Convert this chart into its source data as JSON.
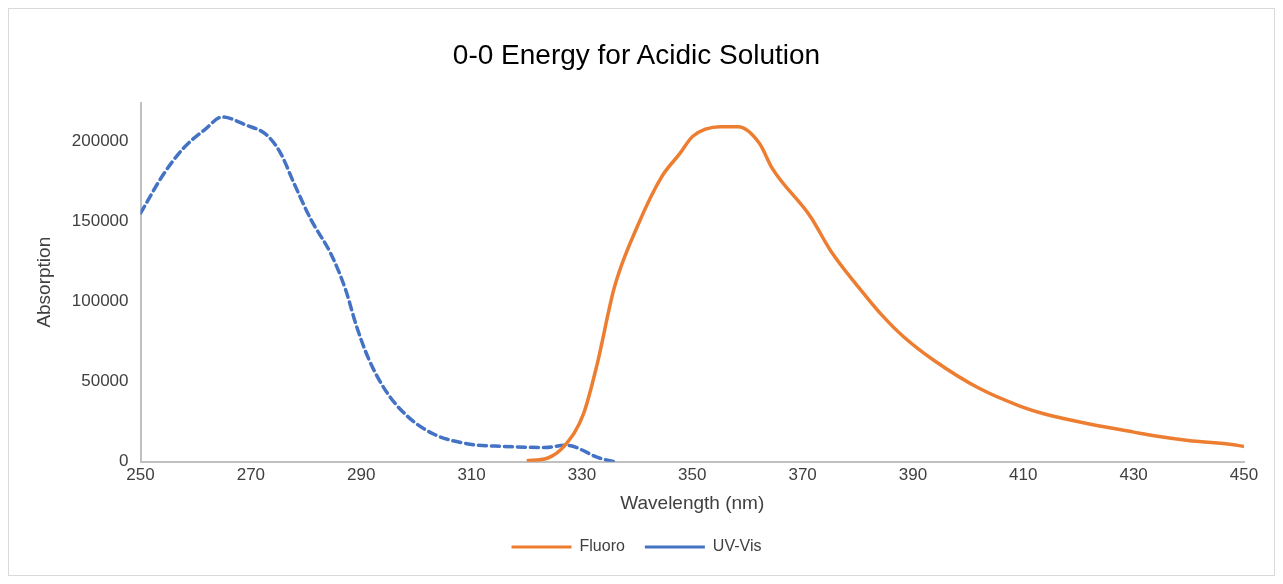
{
  "chart_data": {
    "type": "line",
    "title": "0-0 Energy for Acidic Solution",
    "xlabel": "Wavelength (nm)",
    "ylabel": "Absorption",
    "xlim": [
      250,
      450
    ],
    "xticks": [
      250,
      270,
      290,
      310,
      330,
      350,
      370,
      390,
      410,
      430,
      450
    ],
    "ylim": [
      0,
      224000
    ],
    "yticks": [
      0,
      50000,
      100000,
      150000,
      200000
    ],
    "grid": false,
    "legend": "bottom",
    "marker": "none",
    "series": [
      {
        "name": "Fluoro",
        "color": "#ed7d31",
        "line_style": "solid",
        "x": [
          320,
          323.7,
          327.1,
          330.3,
          332.7,
          335.9,
          340.2,
          344.5,
          347.7,
          350.1,
          355.1,
          358.3,
          362.1,
          364.5,
          371.4,
          375.2,
          381.3,
          384.5,
          388.3,
          393.9,
          401.9,
          410,
          413.7,
          422,
          430,
          433.7,
          439.9,
          447.4,
          450
        ],
        "values": [
          700,
          2200,
          11000,
          30000,
          60000,
          109000,
          148000,
          178000,
          192000,
          203000,
          209000,
          209000,
          199000,
          183000,
          153000,
          131000,
          104000,
          91000,
          78000,
          63000,
          46000,
          34000,
          30000,
          23600,
          18500,
          16200,
          13300,
          11000,
          9600
        ]
      },
      {
        "name": "UV-Vis",
        "color": "#4472c4",
        "line_style": "dashed",
        "x": [
          250,
          254.1,
          257.9,
          261.6,
          264.8,
          269.1,
          272.8,
          275.3,
          277.9,
          280.9,
          284.6,
          287.2,
          289.1,
          291.5,
          294.7,
          298.5,
          303.3,
          309.7,
          315.9,
          323.3,
          327.1,
          333.3,
          336
        ],
        "values": [
          155000,
          179000,
          196000,
          207000,
          215000,
          210000,
          204000,
          193000,
          173000,
          151000,
          129000,
          107000,
          85000,
          63000,
          43000,
          28000,
          17000,
          11000,
          9600,
          8900,
          10300,
          2200,
          0
        ]
      }
    ]
  }
}
